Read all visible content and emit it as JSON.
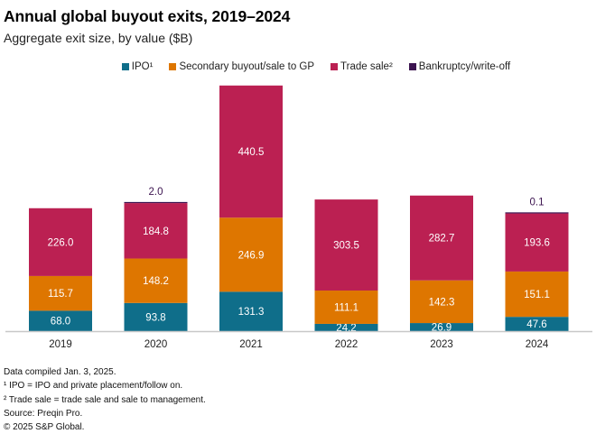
{
  "title": "Annual global buyout exits, 2019–2024",
  "subtitle": "Aggregate exit size, by value ($B)",
  "legend": [
    {
      "label": "IPO¹",
      "color": "#0f6e8a"
    },
    {
      "label": "Secondary buyout/sale to GP",
      "color": "#de7600"
    },
    {
      "label": "Trade sale²",
      "color": "#bb2052"
    },
    {
      "label": "Bankruptcy/write-off",
      "color": "#3c1450"
    }
  ],
  "notes": [
    "Data compiled Jan. 3, 2025.",
    "¹ IPO = IPO and private placement/follow on.",
    "² Trade sale = trade sale and sale to management.",
    "Source: Preqin Pro.",
    "© 2025 S&P Global."
  ],
  "chart_data": {
    "type": "bar",
    "stacked": true,
    "title": "Annual global buyout exits, 2019–2024",
    "subtitle": "Aggregate exit size, by value ($B)",
    "xlabel": "",
    "ylabel": "",
    "categories": [
      "2019",
      "2020",
      "2021",
      "2022",
      "2023",
      "2024"
    ],
    "series": [
      {
        "name": "IPO¹",
        "color": "#0f6e8a",
        "values": [
          68.0,
          93.8,
          131.3,
          24.2,
          26.9,
          47.6
        ]
      },
      {
        "name": "Secondary buyout/sale to GP",
        "color": "#de7600",
        "values": [
          115.7,
          148.2,
          246.9,
          111.1,
          142.3,
          151.1
        ]
      },
      {
        "name": "Trade sale²",
        "color": "#bb2052",
        "values": [
          226.0,
          184.8,
          440.5,
          303.5,
          282.7,
          193.6
        ]
      },
      {
        "name": "Bankruptcy/write-off",
        "color": "#3c1450",
        "values": [
          0,
          2.0,
          0,
          0,
          0,
          0.1
        ]
      }
    ],
    "data_labels": {
      "Bankruptcy/write-off": [
        "",
        "2.0",
        "",
        "",
        "",
        "0.1"
      ]
    },
    "ylim": [
      0,
      820
    ],
    "grid": false,
    "legend_position": "top"
  }
}
